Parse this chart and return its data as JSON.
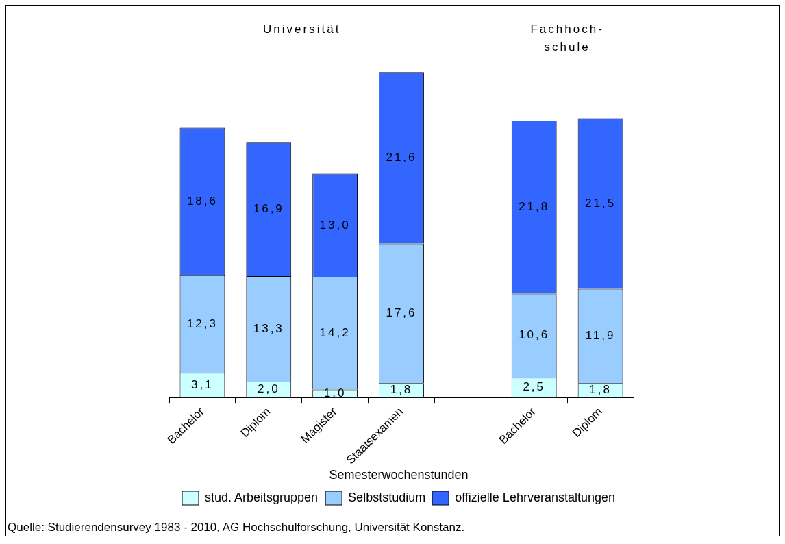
{
  "chart_data": {
    "type": "bar",
    "stacked": true,
    "legend": "bottom",
    "legend_title": "Semesterwochenstunden",
    "categories": [
      "Bachelor",
      "Diplom",
      "Magister",
      "Staatsexamen",
      null,
      "Bachelor",
      "Diplom"
    ],
    "series": [
      {
        "name": "stud. Arbeitsgruppen",
        "color": "#ccffff",
        "values": [
          3.1,
          2.0,
          1.0,
          1.8,
          null,
          2.5,
          1.8
        ],
        "value_labels": [
          "3,1",
          "2,0",
          "1,0",
          "1,8",
          null,
          "2,5",
          "1,8"
        ]
      },
      {
        "name": "Selbststudium",
        "color": "#99ccff",
        "values": [
          12.3,
          13.3,
          14.2,
          17.6,
          null,
          10.6,
          11.9
        ],
        "value_labels": [
          "12,3",
          "13,3",
          "14,2",
          "17,6",
          null,
          "10,6",
          "11,9"
        ]
      },
      {
        "name": "offizielle Lehrveranstaltungen",
        "color": "#3366ff",
        "values": [
          18.6,
          16.9,
          13.0,
          21.6,
          null,
          21.8,
          21.5
        ],
        "value_labels": [
          "18,6",
          "16,9",
          "13,0",
          "21,6",
          null,
          "21,8",
          "21,5"
        ]
      }
    ],
    "annotations": [
      "Universität",
      "Fachhoch-\nschule",
      "Quelle: Studierendensurvey 1983 - 2010, AG Hochschulforschung, Universität Konstanz."
    ]
  }
}
